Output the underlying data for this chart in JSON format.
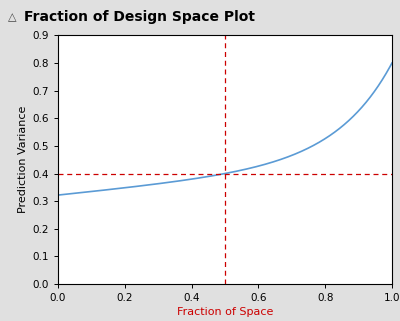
{
  "title": "Fraction of Design Space Plot",
  "xlabel": "Fraction of Space",
  "ylabel": "Prediction Variance",
  "xlim": [
    0.0,
    1.0
  ],
  "ylim": [
    0.0,
    0.9
  ],
  "xticks": [
    0.0,
    0.2,
    0.4,
    0.6,
    0.8,
    1.0
  ],
  "yticks": [
    0.0,
    0.1,
    0.2,
    0.3,
    0.4,
    0.5,
    0.6,
    0.7,
    0.8,
    0.9
  ],
  "curve_color": "#5B9BD5",
  "dashed_color": "#CC0000",
  "vline_x": 0.5,
  "hline_y": 0.4,
  "background_color": "#FFFFFF",
  "header_bg": "#E0E0E0",
  "title_fontsize": 10,
  "axis_label_fontsize": 8,
  "tick_fontsize": 7.5,
  "curve_start": 0.322,
  "curve_at_half": 0.4,
  "curve_end": 0.8,
  "fig_width": 4.0,
  "fig_height": 3.21,
  "dpi": 100
}
